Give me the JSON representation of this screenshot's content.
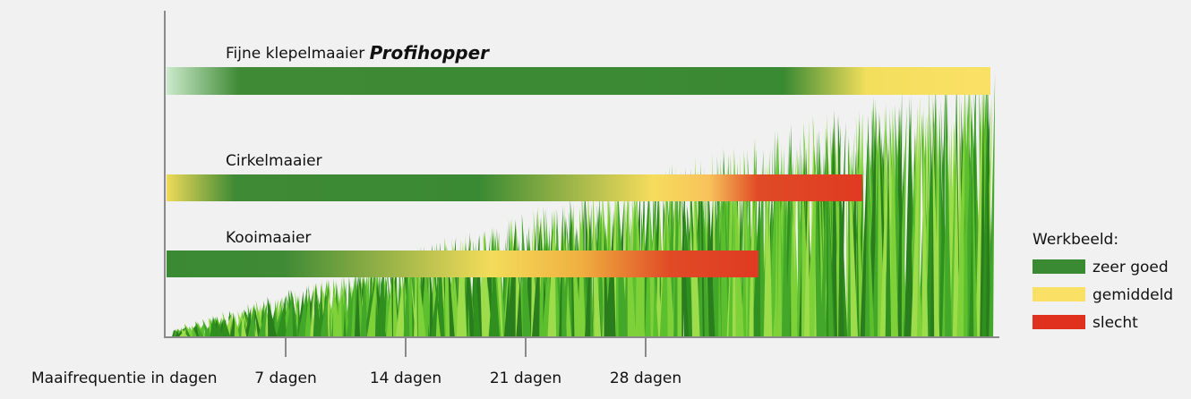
{
  "bars": [
    {
      "label": "Fijne klepelmaaier",
      "brand": "Profihopper"
    },
    {
      "label": "Cirkelmaaier"
    },
    {
      "label": "Kooimaaier"
    }
  ],
  "axis": {
    "label": "Maaifrequentie in dagen",
    "ticks": [
      "7 dagen",
      "14 dagen",
      "21 dagen",
      "28 dagen"
    ]
  },
  "legend": {
    "title": "Werkbeeld:",
    "items": [
      "zeer goed",
      "gemiddeld",
      "slecht"
    ]
  }
}
